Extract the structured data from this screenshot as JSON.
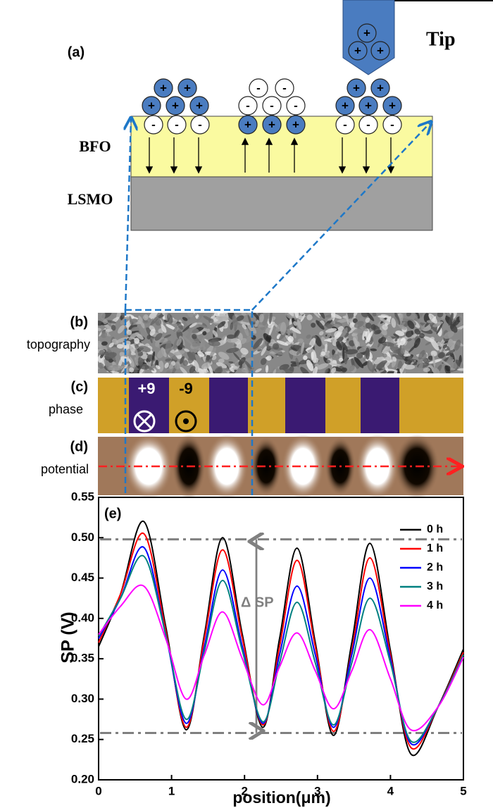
{
  "panel_a": {
    "label": "(a)",
    "tip": "Tip",
    "layer_top": "BFO",
    "layer_bottom": "LSMO",
    "positive": "+",
    "negative": "-"
  },
  "panel_b": {
    "label": "(b)",
    "name": "topography"
  },
  "panel_c": {
    "label": "(c)",
    "name": "phase",
    "left_voltage": "+9",
    "right_voltage": "-9"
  },
  "panel_d": {
    "label": "(d)",
    "name": "potential"
  },
  "chart_data": {
    "type": "line",
    "label": "(e)",
    "annotation": "Δ SP",
    "xlabel": "position(μm)",
    "ylabel": "SP (V)",
    "x": [
      0,
      0.3,
      0.62,
      0.92,
      1.2,
      1.45,
      1.7,
      1.97,
      2.25,
      2.48,
      2.72,
      2.97,
      3.22,
      3.47,
      3.72,
      4.0,
      4.28,
      4.65,
      5.0
    ],
    "series": [
      {
        "name": "0 h",
        "color": "#000000",
        "values": [
          0.365,
          0.43,
          0.52,
          0.39,
          0.262,
          0.38,
          0.5,
          0.38,
          0.265,
          0.375,
          0.487,
          0.37,
          0.255,
          0.37,
          0.493,
          0.36,
          0.232,
          0.29,
          0.362
        ]
      },
      {
        "name": "1 h",
        "color": "#ff0000",
        "values": [
          0.37,
          0.43,
          0.505,
          0.385,
          0.265,
          0.375,
          0.485,
          0.375,
          0.268,
          0.365,
          0.472,
          0.365,
          0.26,
          0.36,
          0.475,
          0.355,
          0.24,
          0.29,
          0.358
        ]
      },
      {
        "name": "2 h",
        "color": "#0000ff",
        "values": [
          0.375,
          0.425,
          0.488,
          0.38,
          0.27,
          0.365,
          0.46,
          0.365,
          0.27,
          0.355,
          0.44,
          0.355,
          0.265,
          0.355,
          0.45,
          0.35,
          0.245,
          0.29,
          0.355
        ]
      },
      {
        "name": "3 h",
        "color": "#008080",
        "values": [
          0.378,
          0.425,
          0.477,
          0.38,
          0.275,
          0.36,
          0.447,
          0.36,
          0.272,
          0.345,
          0.42,
          0.345,
          0.268,
          0.345,
          0.425,
          0.345,
          0.248,
          0.29,
          0.355
        ]
      },
      {
        "name": "4 h",
        "color": "#ff00ff",
        "values": [
          0.38,
          0.415,
          0.44,
          0.375,
          0.3,
          0.355,
          0.408,
          0.35,
          0.293,
          0.34,
          0.382,
          0.335,
          0.288,
          0.335,
          0.386,
          0.325,
          0.262,
          0.29,
          0.352
        ]
      }
    ],
    "xlim": [
      0,
      5
    ],
    "ylim": [
      0.2,
      0.55
    ],
    "xticks": [
      0,
      1,
      2,
      3,
      4,
      5
    ],
    "yticks": [
      {
        "value": 0.2,
        "label": "0.20"
      },
      0.25,
      {
        "value": 0.3,
        "label": "0.30"
      },
      0.35,
      {
        "value": 0.4,
        "label": "0.40"
      },
      0.45,
      {
        "value": 0.5,
        "label": "0.50"
      },
      0.55
    ],
    "reference_lines": [
      0.498,
      0.258
    ]
  }
}
